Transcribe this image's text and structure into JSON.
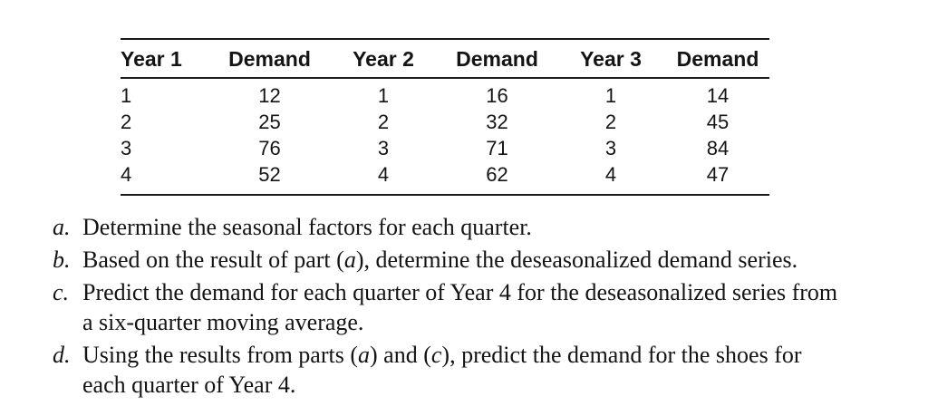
{
  "page": {
    "background": "#ffffff",
    "text_color": "#141414",
    "rule_color": "#1a1a1a"
  },
  "table": {
    "headers": [
      "Year 1",
      "Demand",
      "Year 2",
      "Demand",
      "Year 3",
      "Demand"
    ],
    "rows": [
      [
        "1",
        "12",
        "1",
        "16",
        "1",
        "14"
      ],
      [
        "2",
        "25",
        "2",
        "32",
        "2",
        "45"
      ],
      [
        "3",
        "76",
        "3",
        "71",
        "3",
        "84"
      ],
      [
        "4",
        "52",
        "4",
        "62",
        "4",
        "47"
      ]
    ]
  },
  "questions": {
    "items": [
      {
        "label": "a.",
        "segments": [
          {
            "t": "Determine the seasonal factors for each quarter."
          }
        ]
      },
      {
        "label": "b.",
        "segments": [
          {
            "t": "Based on the result of part ("
          },
          {
            "t": "a",
            "italic": true
          },
          {
            "t": "), determine the deseasonalized demand series."
          }
        ]
      },
      {
        "label": "c.",
        "segments": [
          {
            "t": "Predict the demand for each quarter of Year 4 for the deseasonalized series from"
          },
          {
            "br": true
          },
          {
            "t": "a six-quarter moving average."
          }
        ]
      },
      {
        "label": "d.",
        "segments": [
          {
            "t": "Using the results from parts ("
          },
          {
            "t": "a",
            "italic": true
          },
          {
            "t": ") and ("
          },
          {
            "t": "c",
            "italic": true
          },
          {
            "t": "), predict the demand for the shoes for"
          },
          {
            "br": true
          },
          {
            "t": "each quarter of Year 4."
          }
        ]
      }
    ]
  }
}
